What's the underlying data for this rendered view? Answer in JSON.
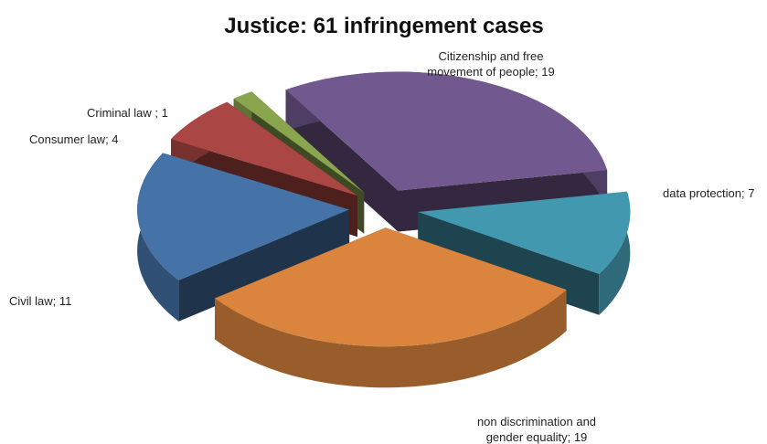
{
  "chart_data": {
    "type": "pie3d",
    "title": "Justice: 61 infringement cases",
    "values": [
      19,
      7,
      19,
      11,
      4,
      1
    ],
    "value_labels": [
      "Citizenship and free movement of people; 19",
      "data protection; 7",
      "non discrimination and gender equality; 19",
      "Civil law; 11",
      "Consumer law; 4",
      "Criminal law ; 1"
    ],
    "colors": [
      "#71588f",
      "#4198af",
      "#db843d",
      "#4572a7",
      "#aa4643",
      "#89a54e"
    ]
  }
}
